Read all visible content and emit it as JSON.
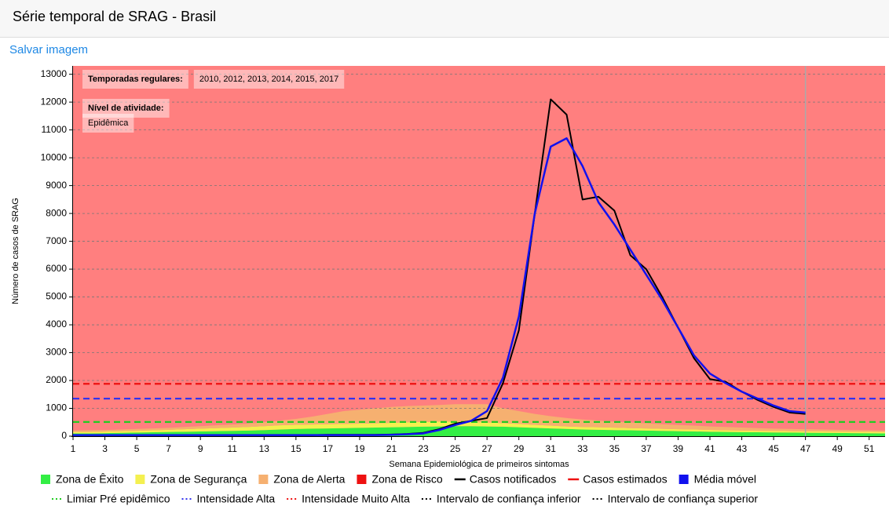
{
  "header": {
    "title": "Série temporal de SRAG - Brasil",
    "link": "Salvar imagem"
  },
  "chart_data": {
    "type": "area",
    "x_label": "Semana Epidemiológica de primeiros sintomas",
    "y_label": "Número de casos de SRAG",
    "annotations": [
      {
        "label": "Temporadas regulares:",
        "text": "2010, 2012, 2013, 2014, 2015, 2017"
      },
      {
        "label": "Nível de atividade:",
        "text": "Epidêmica"
      }
    ],
    "x": [
      1,
      2,
      3,
      4,
      5,
      6,
      7,
      8,
      9,
      10,
      11,
      12,
      13,
      14,
      15,
      16,
      17,
      18,
      19,
      20,
      21,
      22,
      23,
      24,
      25,
      26,
      27,
      28,
      29,
      30,
      31,
      32,
      33,
      34,
      35,
      36,
      37,
      38,
      39,
      40,
      41,
      42,
      43,
      44,
      45,
      46,
      47,
      48,
      49,
      50,
      51,
      52
    ],
    "xlim": [
      1,
      52
    ],
    "xticks": [
      1,
      3,
      5,
      7,
      9,
      11,
      13,
      15,
      17,
      19,
      21,
      23,
      25,
      27,
      29,
      31,
      33,
      35,
      37,
      39,
      41,
      43,
      45,
      47,
      49,
      51
    ],
    "ylim": [
      0,
      13300
    ],
    "yticks": [
      0,
      1000,
      2000,
      3000,
      4000,
      5000,
      6000,
      7000,
      8000,
      9000,
      10000,
      11000,
      12000,
      13000
    ],
    "grid": true,
    "vline_x": 47,
    "series": [
      {
        "name": "Zona de Êxito",
        "kind": "zone",
        "color": "#33ee44",
        "values": [
          100,
          100,
          110,
          120,
          130,
          140,
          150,
          160,
          170,
          180,
          190,
          200,
          220,
          240,
          260,
          270,
          280,
          290,
          300,
          310,
          320,
          330,
          340,
          350,
          360,
          360,
          350,
          340,
          320,
          300,
          280,
          260,
          240,
          230,
          220,
          210,
          200,
          190,
          180,
          170,
          160,
          150,
          145,
          140,
          135,
          130,
          125,
          120,
          115,
          110,
          105,
          100
        ]
      },
      {
        "name": "Zona de Segurança",
        "kind": "zone",
        "color": "#f4f050",
        "values": [
          50,
          50,
          55,
          60,
          65,
          70,
          80,
          90,
          100,
          110,
          120,
          130,
          140,
          150,
          150,
          150,
          150,
          150,
          150,
          150,
          160,
          170,
          170,
          170,
          160,
          150,
          140,
          130,
          120,
          110,
          100,
          90,
          90,
          90,
          85,
          80,
          80,
          75,
          70,
          70,
          65,
          60,
          60,
          55,
          55,
          50,
          50,
          50,
          50,
          50,
          50,
          50
        ]
      },
      {
        "name": "Zona de Alerta",
        "kind": "zone",
        "color": "#f6b070",
        "values": [
          50,
          60,
          55,
          60,
          65,
          70,
          70,
          80,
          90,
          100,
          110,
          120,
          140,
          170,
          210,
          280,
          370,
          460,
          500,
          540,
          570,
          580,
          590,
          600,
          630,
          640,
          660,
          530,
          460,
          390,
          340,
          300,
          270,
          240,
          215,
          200,
          180,
          165,
          150,
          140,
          125,
          120,
          105,
          95,
          80,
          80,
          75,
          70,
          65,
          60,
          55,
          50
        ]
      },
      {
        "name": "Zona de Risco",
        "kind": "zone",
        "color": "#ff7f7f",
        "legend_color": "#ee1111"
      },
      {
        "name": "Casos notificados",
        "kind": "line",
        "color": "#000000",
        "values": [
          40,
          40,
          40,
          40,
          40,
          40,
          40,
          40,
          40,
          40,
          40,
          40,
          40,
          40,
          40,
          40,
          50,
          50,
          50,
          50,
          60,
          80,
          120,
          250,
          450,
          550,
          650,
          1900,
          3800,
          8000,
          12100,
          11550,
          8500,
          8600,
          8100,
          6500,
          6000,
          5000,
          3900,
          2800,
          2050,
          1950,
          1600,
          1300,
          1050,
          850,
          800,
          null,
          null,
          null,
          null,
          null
        ]
      },
      {
        "name": "Casos estimados",
        "kind": "line",
        "color": "#ee1111"
      },
      {
        "name": "Média móvel",
        "kind": "line",
        "legend_symbol": "square",
        "color": "#1111ee",
        "values": [
          40,
          40,
          40,
          40,
          40,
          40,
          40,
          40,
          40,
          40,
          40,
          40,
          40,
          40,
          40,
          40,
          40,
          40,
          40,
          40,
          50,
          70,
          100,
          220,
          400,
          550,
          900,
          2100,
          4300,
          8000,
          10400,
          10700,
          9700,
          8400,
          7600,
          6700,
          5800,
          4900,
          3900,
          2900,
          2250,
          1900,
          1600,
          1350,
          1100,
          900,
          850,
          null,
          null,
          null,
          null,
          null
        ]
      },
      {
        "name": "Limiar Pré epidêmico",
        "kind": "threshold",
        "color": "#22cc22",
        "value": 510
      },
      {
        "name": "Intensidade Alta",
        "kind": "threshold",
        "color": "#3333ee",
        "value": 1350
      },
      {
        "name": "Intensidade Muito Alta",
        "kind": "threshold",
        "color": "#ee1111",
        "value": 1880
      },
      {
        "name": "Intervalo de confiança inferior",
        "kind": "interval",
        "color": "#000000"
      },
      {
        "name": "Intervalo de confiança superior",
        "kind": "interval",
        "color": "#000000"
      }
    ]
  }
}
